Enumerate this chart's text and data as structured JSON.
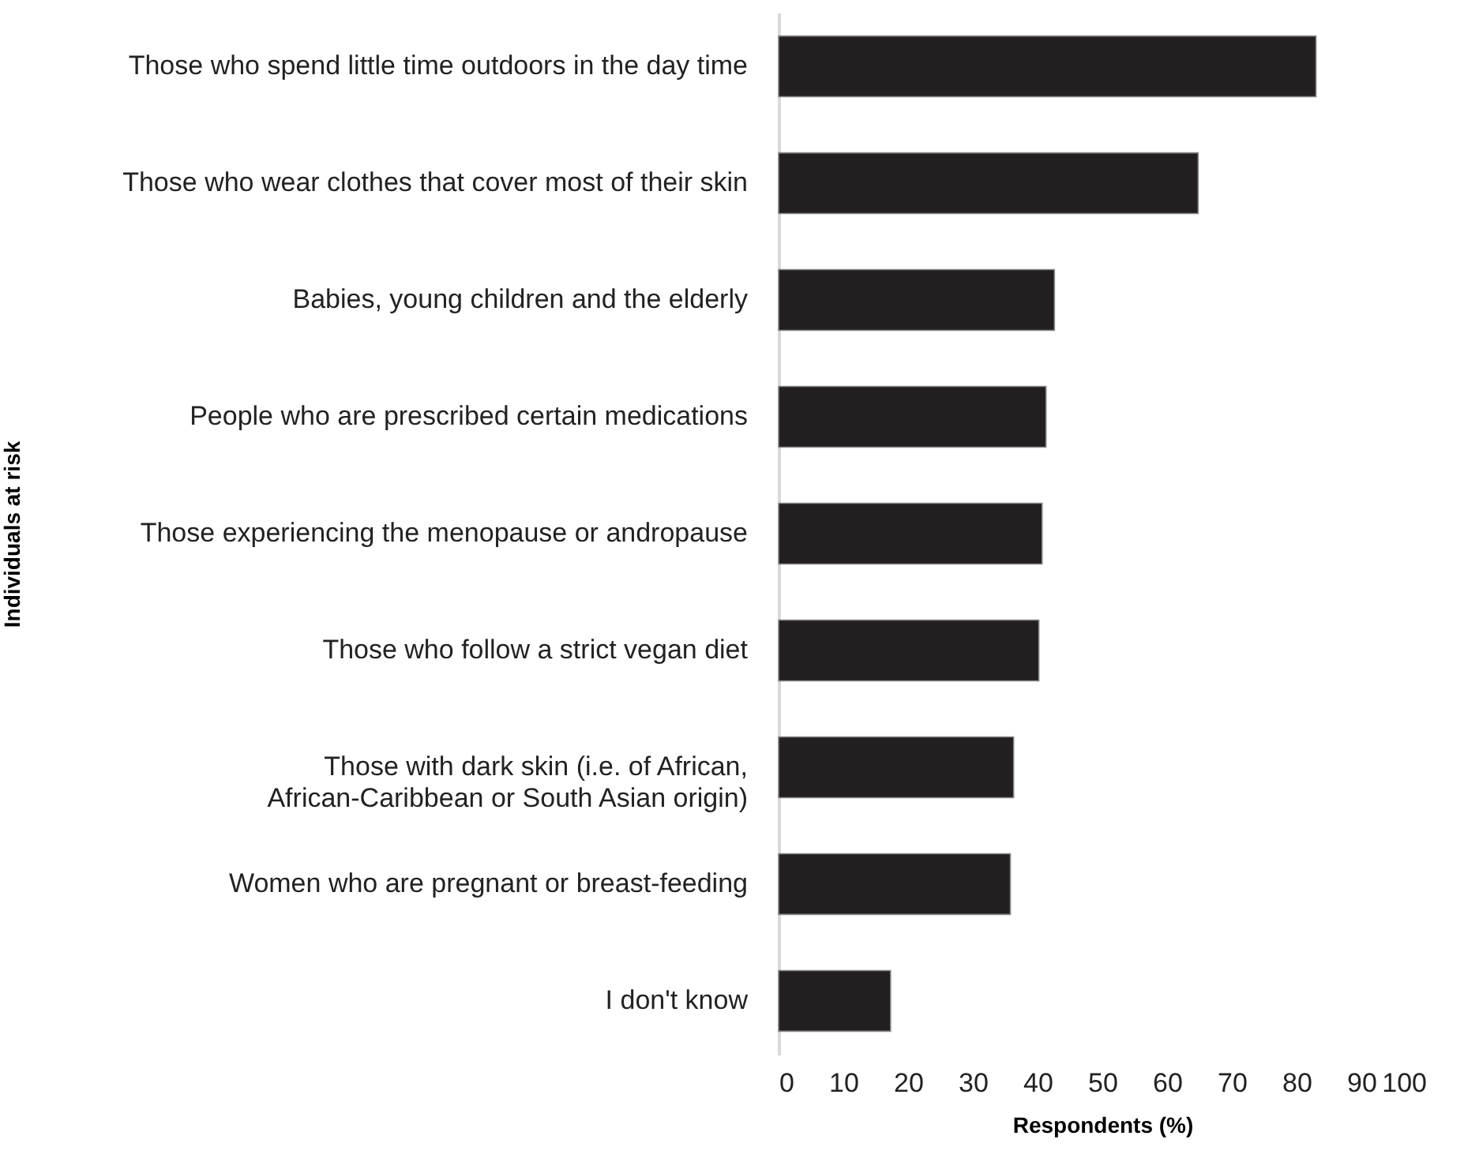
{
  "chart_data": {
    "type": "bar",
    "orientation": "horizontal",
    "xlabel": "Respondents (%)",
    "ylabel": "Individuals at risk",
    "categories": [
      "Those who spend little time outdoors in the day time",
      "Those who wear clothes that cover most of their skin",
      "Babies, young children and the elderly",
      "People who are prescribed certain medications",
      "Those experiencing the menopause or andropause",
      "Those who follow a strict vegan diet",
      "Those with dark skin (i.e. of African, African-Caribbean or South Asian origin)",
      "Women who are pregnant or breast-feeding",
      "I don't know"
    ],
    "values": [
      83.0,
      64.8,
      42.6,
      41.3,
      40.7,
      40.2,
      36.3,
      35.8,
      17.3
    ],
    "color": "#231f20",
    "xlim": [
      0,
      100
    ],
    "xticks": [
      0,
      10,
      20,
      30,
      40,
      50,
      60,
      70,
      80,
      90,
      100
    ],
    "grid": false,
    "legend": false
  }
}
